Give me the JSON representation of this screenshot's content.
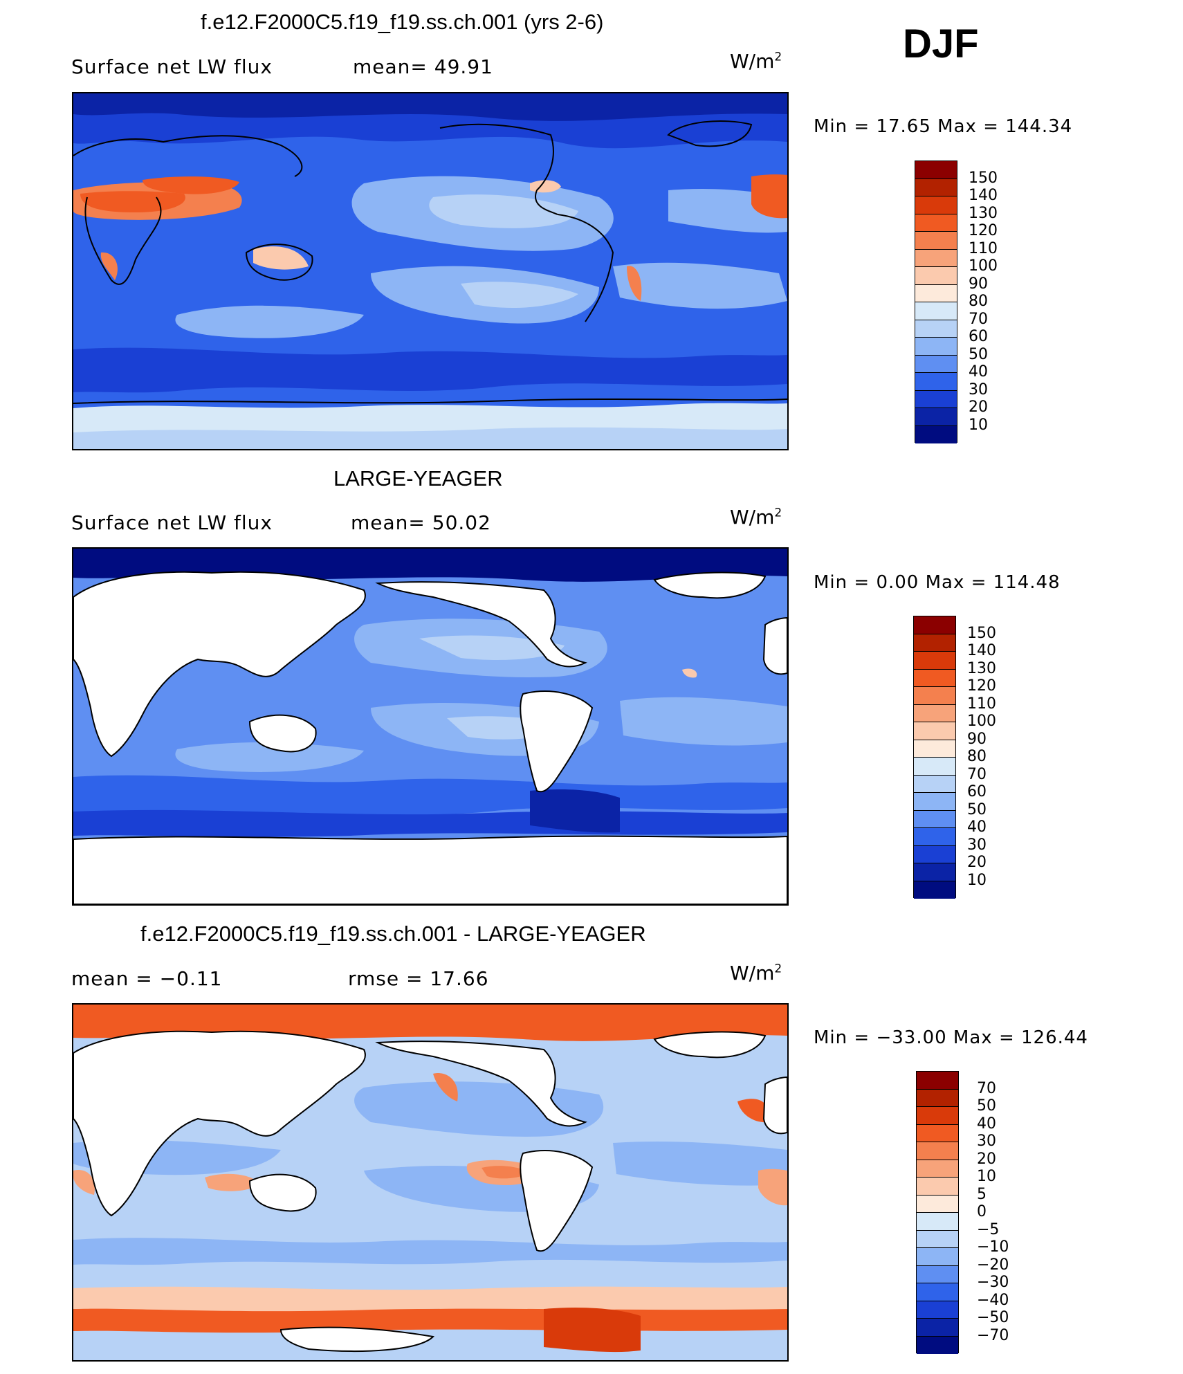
{
  "season": "DJF",
  "panels": [
    {
      "title": "f.e12.F2000C5.f19_f19.ss.ch.001 (yrs 2-6)",
      "left_text": "Surface net LW flux",
      "mid_text": "mean=  49.91",
      "units_base": "W/m",
      "units_sup": "2",
      "minmax": "Min =   17.65 Max = 144.34",
      "colorbar_labels": [
        "150",
        "140",
        "130",
        "120",
        "110",
        "100",
        "90",
        "80",
        "70",
        "60",
        "50",
        "40",
        "30",
        "20",
        "10"
      ],
      "colors": [
        "#8b0000",
        "#b22200",
        "#d93a0a",
        "#f05a22",
        "#f4804e",
        "#f7a37a",
        "#fbcaae",
        "#fdeadb",
        "#d7e9f8",
        "#b7d2f6",
        "#8db5f5",
        "#5f8ff2",
        "#2f63ea",
        "#1a40d4",
        "#0b23a6",
        "#000c80"
      ]
    },
    {
      "title": "LARGE-YEAGER",
      "left_text": "Surface net LW flux",
      "mid_text": "mean=  50.02",
      "units_base": "W/m",
      "units_sup": "2",
      "minmax": "Min =   0.00 Max = 114.48",
      "colorbar_labels": [
        "150",
        "140",
        "130",
        "120",
        "110",
        "100",
        "90",
        "80",
        "70",
        "60",
        "50",
        "40",
        "30",
        "20",
        "10"
      ],
      "colors": [
        "#8b0000",
        "#b22200",
        "#d93a0a",
        "#f05a22",
        "#f4804e",
        "#f7a37a",
        "#fbcaae",
        "#fdeadb",
        "#d7e9f8",
        "#b7d2f6",
        "#8db5f5",
        "#5f8ff2",
        "#2f63ea",
        "#1a40d4",
        "#0b23a6",
        "#000c80"
      ]
    },
    {
      "title": "f.e12.F2000C5.f19_f19.ss.ch.001 - LARGE-YEAGER",
      "left_text": "mean =   −0.11",
      "mid_text": "rmse =   17.66",
      "units_base": "W/m",
      "units_sup": "2",
      "minmax": "Min = −33.00 Max = 126.44",
      "colorbar_labels": [
        "70",
        "50",
        "40",
        "30",
        "20",
        "10",
        "5",
        "0",
        "−5",
        "−10",
        "−20",
        "−30",
        "−40",
        "−50",
        "−70"
      ],
      "colors": [
        "#8b0000",
        "#b22200",
        "#d93a0a",
        "#f05a22",
        "#f4804e",
        "#f7a37a",
        "#fbcaae",
        "#fdeadb",
        "#d7e9f8",
        "#b7d2f6",
        "#8db5f5",
        "#5f8ff2",
        "#2f63ea",
        "#1a40d4",
        "#0b23a6",
        "#000c80"
      ]
    }
  ]
}
